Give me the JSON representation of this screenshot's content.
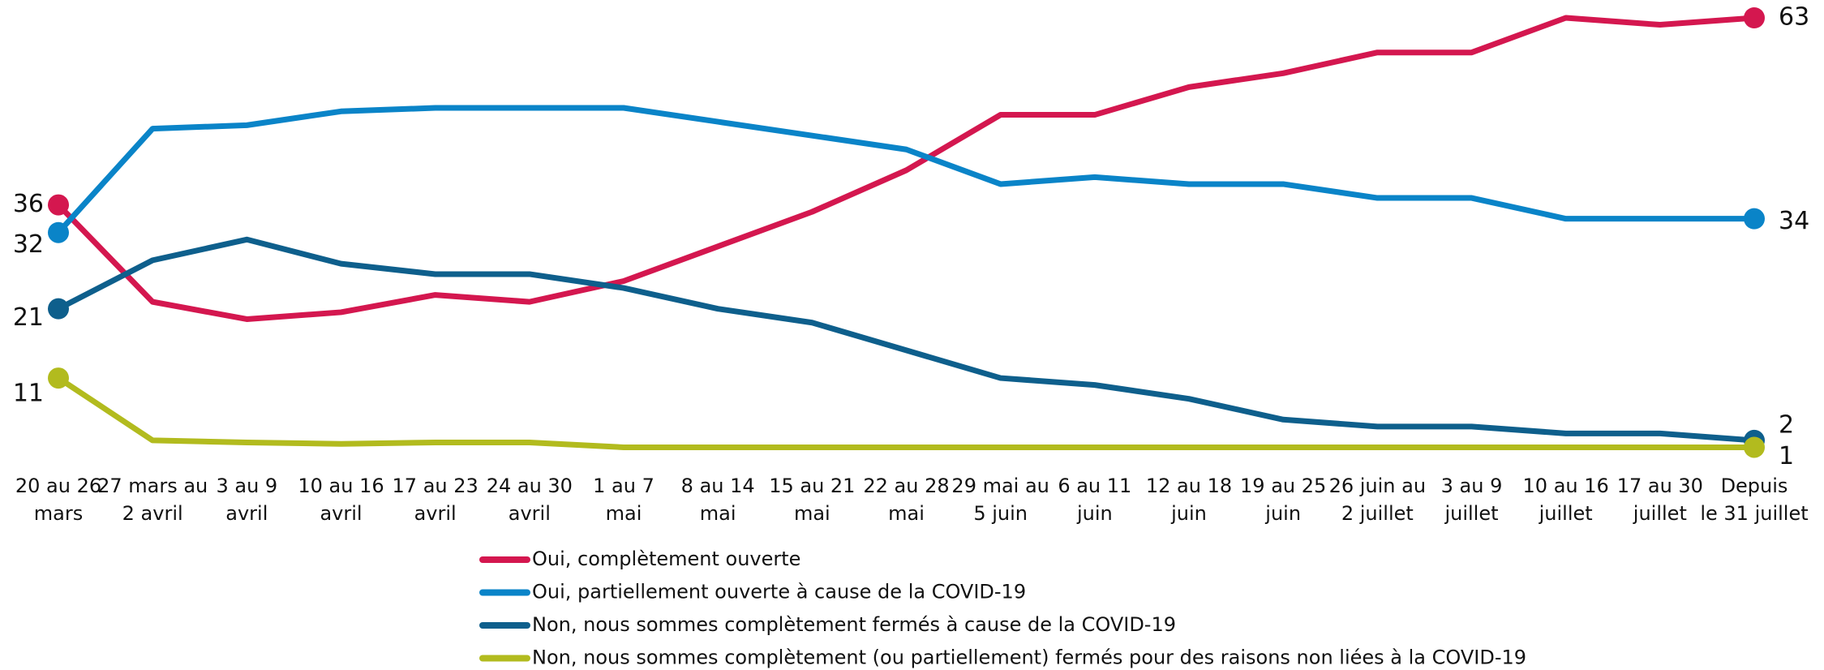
{
  "chart_data": {
    "type": "line",
    "categories": [
      [
        "20 au 26",
        "mars"
      ],
      [
        "27 mars au",
        "2 avril"
      ],
      [
        "3 au 9",
        "avril"
      ],
      [
        "10 au 16",
        "avril"
      ],
      [
        "17 au 23",
        "avril"
      ],
      [
        "24 au 30",
        "avril"
      ],
      [
        "1 au 7",
        "mai"
      ],
      [
        "8 au 14",
        "mai"
      ],
      [
        "15 au 21",
        "mai"
      ],
      [
        "22 au 28",
        "mai"
      ],
      [
        "29 mai au",
        "5 juin"
      ],
      [
        "6 au 11",
        "juin"
      ],
      [
        "12 au 18",
        "juin"
      ],
      [
        "19 au 25",
        "juin"
      ],
      [
        "26 juin au",
        "2 juillet"
      ],
      [
        "3 au 9",
        "juillet"
      ],
      [
        "10 au 16",
        "juillet"
      ],
      [
        "17 au 30",
        "juillet"
      ],
      [
        "Depuis",
        "le 31 juillet"
      ]
    ],
    "series": [
      {
        "name": "Oui, complètement ouverte",
        "color": "#d4174f",
        "values": [
          36,
          22,
          19.5,
          20.5,
          23,
          22,
          25,
          30,
          35,
          41,
          49,
          49,
          53,
          55,
          58,
          58,
          63,
          62,
          63
        ]
      },
      {
        "name": "Oui, partiellement ouverte à cause de la COVID-19",
        "color": "#0a84c8",
        "values": [
          32,
          47,
          47.5,
          49.5,
          50,
          50,
          50,
          48,
          46,
          44,
          39,
          40,
          39,
          39,
          37,
          37,
          34,
          34,
          34
        ]
      },
      {
        "name": "Non, nous sommes complètement fermés à cause de la COVID-19",
        "color": "#0e5f8c",
        "values": [
          21,
          28,
          31,
          27.5,
          26,
          26,
          24,
          21,
          19,
          15,
          11,
          10,
          8,
          5,
          4,
          4,
          3,
          3,
          2
        ]
      },
      {
        "name": "Non, nous sommes complètement (ou partiellement) fermés pour des raisons non liées à la COVID-19",
        "color": "#b2bb1e",
        "values": [
          11,
          2,
          1.7,
          1.5,
          1.7,
          1.7,
          1,
          1,
          1,
          1,
          1,
          1,
          1,
          1,
          1,
          1,
          1,
          1,
          1
        ]
      }
    ],
    "ylim": [
      0,
      63
    ]
  }
}
